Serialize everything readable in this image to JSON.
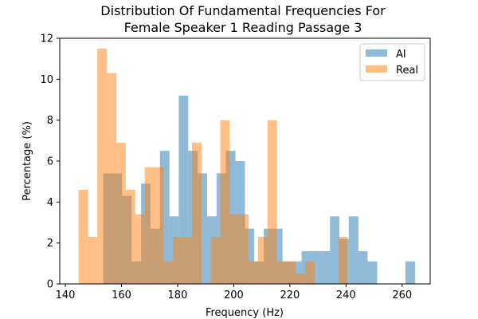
{
  "chart_data": {
    "type": "bar",
    "title_lines": [
      "Distribution Of Fundamental Frequencies For",
      "Female Speaker 1 Reading Passage 3"
    ],
    "xlabel": "Frequency (Hz)",
    "ylabel": "Percentage (%)",
    "xlim": [
      138,
      270
    ],
    "ylim": [
      0,
      12
    ],
    "xticks": [
      140,
      160,
      180,
      200,
      220,
      240,
      260
    ],
    "yticks": [
      0,
      2,
      4,
      6,
      8,
      10,
      12
    ],
    "grid": false,
    "legend_position": "top-right",
    "series": [
      {
        "name": "AI",
        "color": "#1f77b4",
        "opacity": 0.5,
        "bins": [
          [
            153.5,
            160.2,
            5.4
          ],
          [
            160.2,
            163.6,
            4.3
          ],
          [
            163.6,
            167.0,
            1.1
          ],
          [
            167.0,
            170.3,
            4.9
          ],
          [
            170.3,
            173.7,
            2.7
          ],
          [
            173.7,
            177.1,
            6.5
          ],
          [
            177.1,
            180.4,
            3.3
          ],
          [
            180.4,
            183.8,
            9.2
          ],
          [
            183.8,
            187.2,
            6.5
          ],
          [
            187.2,
            190.5,
            5.4
          ],
          [
            190.5,
            193.9,
            3.3
          ],
          [
            193.9,
            197.2,
            5.4
          ],
          [
            197.2,
            200.6,
            6.5
          ],
          [
            200.6,
            204.0,
            6.0
          ],
          [
            204.0,
            207.3,
            2.7
          ],
          [
            207.3,
            210.7,
            1.1
          ],
          [
            210.7,
            214.1,
            2.7
          ],
          [
            214.1,
            217.4,
            2.7
          ],
          [
            217.4,
            220.8,
            1.1
          ],
          [
            220.8,
            224.2,
            1.1
          ],
          [
            224.2,
            227.5,
            1.6
          ],
          [
            227.5,
            230.9,
            1.6
          ],
          [
            230.9,
            234.3,
            1.6
          ],
          [
            234.3,
            237.6,
            3.3
          ],
          [
            237.6,
            241.0,
            2.2
          ],
          [
            241.0,
            244.4,
            3.3
          ],
          [
            244.4,
            247.7,
            1.6
          ],
          [
            247.7,
            251.1,
            1.1
          ],
          [
            261.2,
            264.6,
            1.1
          ]
        ]
      },
      {
        "name": "Real",
        "color": "#ff7f0e",
        "opacity": 0.5,
        "bins": [
          [
            144.7,
            148.1,
            4.6
          ],
          [
            148.1,
            151.4,
            2.3
          ],
          [
            151.4,
            154.8,
            11.5
          ],
          [
            154.8,
            158.2,
            10.3
          ],
          [
            158.2,
            161.5,
            6.9
          ],
          [
            161.5,
            164.9,
            4.6
          ],
          [
            164.9,
            168.3,
            3.4
          ],
          [
            168.3,
            171.6,
            5.7
          ],
          [
            171.6,
            175.0,
            5.7
          ],
          [
            175.0,
            178.4,
            1.1
          ],
          [
            178.4,
            181.7,
            2.3
          ],
          [
            181.7,
            185.1,
            2.3
          ],
          [
            185.1,
            188.5,
            6.9
          ],
          [
            188.5,
            191.8,
            0.0
          ],
          [
            191.8,
            195.2,
            2.3
          ],
          [
            195.2,
            198.6,
            8.0
          ],
          [
            198.6,
            201.9,
            3.4
          ],
          [
            201.9,
            205.3,
            3.4
          ],
          [
            205.3,
            208.7,
            1.1
          ],
          [
            208.7,
            212.0,
            2.3
          ],
          [
            212.0,
            215.4,
            8.0
          ],
          [
            215.4,
            218.8,
            1.1
          ],
          [
            218.8,
            222.1,
            1.1
          ],
          [
            222.1,
            225.5,
            0.5
          ],
          [
            225.5,
            228.9,
            1.1
          ],
          [
            237.3,
            240.6,
            2.3
          ]
        ]
      }
    ]
  }
}
